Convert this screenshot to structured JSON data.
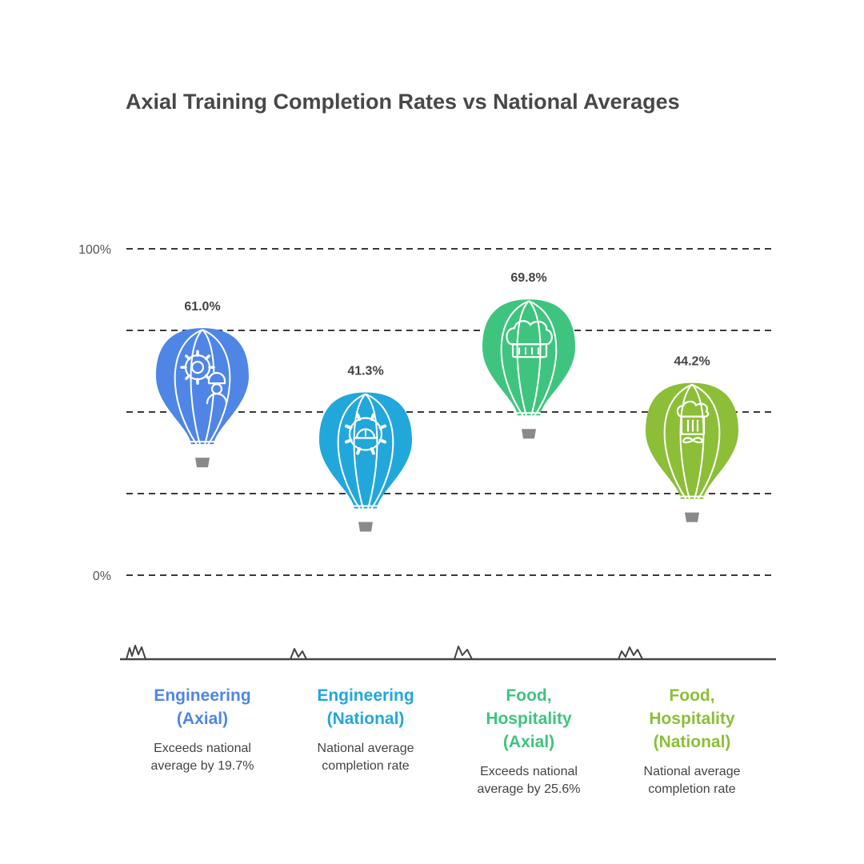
{
  "title": "Axial Training Completion Rates vs National Averages",
  "chart_data": {
    "type": "scatter",
    "title": "Axial Training Completion Rates vs National Averages",
    "y_ticks": [
      "100%",
      "0%"
    ],
    "ylim": [
      0,
      100
    ],
    "grid": true,
    "categories": [
      {
        "label_lines": [
          "Engineering",
          "(Axial)"
        ],
        "value": 61.0,
        "value_label": "61.0%",
        "description": [
          "Exceeds national",
          "average by 19.7%"
        ],
        "color": "#4F86E6",
        "icon": "engineer-gear-icon"
      },
      {
        "label_lines": [
          "Engineering",
          "(National)"
        ],
        "value": 41.3,
        "value_label": "41.3%",
        "description": [
          "National average",
          "completion rate"
        ],
        "color": "#22A7DB",
        "icon": "gear-hardhat-icon"
      },
      {
        "label_lines": [
          "Food,",
          "Hospitality",
          "(Axial)"
        ],
        "value": 69.8,
        "value_label": "69.8%",
        "description": [
          "Exceeds national",
          "average by 25.6%"
        ],
        "color": "#3EC47E",
        "icon": "chef-hat-icon"
      },
      {
        "label_lines": [
          "Food,",
          "Hospitality",
          "(National)"
        ],
        "value": 44.2,
        "value_label": "44.2%",
        "description": [
          "National average",
          "completion rate"
        ],
        "color": "#8DBE38",
        "icon": "chef-mustache-icon"
      }
    ]
  }
}
